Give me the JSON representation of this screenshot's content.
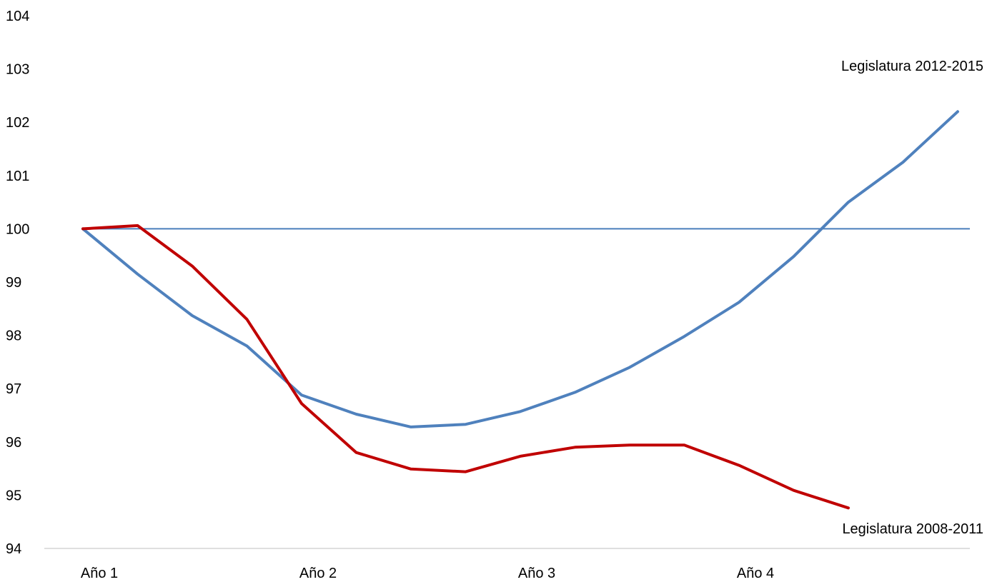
{
  "chart_data": {
    "type": "line",
    "title": "",
    "xlabel": "",
    "ylabel": "",
    "ylim": [
      94,
      104
    ],
    "yticks": [
      "104",
      "103",
      "102",
      "101",
      "100",
      "99",
      "98",
      "97",
      "96",
      "95",
      "94"
    ],
    "xticks": [
      "Año 1",
      "Año 2",
      "Año 3",
      "Año 4"
    ],
    "points_per_year": 4,
    "reference_line": 100,
    "grid": false,
    "colors": {
      "series_2012_2015": "#4f81bd",
      "series_2008_2011": "#c00000",
      "reference": "#4a7ebb",
      "axis": "#bfbfbf"
    },
    "series": [
      {
        "name": "Legislatura 2012-2015",
        "x": [
          0,
          1,
          2,
          3,
          4,
          5,
          6,
          7,
          8,
          9,
          10,
          11,
          12,
          13,
          14,
          15,
          16
        ],
        "values": [
          100.0,
          99.15,
          98.37,
          97.8,
          96.88,
          96.52,
          96.28,
          96.33,
          96.57,
          96.93,
          97.4,
          97.98,
          98.62,
          99.48,
          100.5,
          101.25,
          102.2
        ]
      },
      {
        "name": "Legislatura 2008-2011",
        "x": [
          0,
          1,
          2,
          3,
          4,
          5,
          6,
          7,
          8,
          9,
          10,
          11,
          12,
          13,
          14
        ],
        "values": [
          100.0,
          100.06,
          99.3,
          98.3,
          96.72,
          95.8,
          95.49,
          95.44,
          95.73,
          95.9,
          95.94,
          95.94,
          95.56,
          95.09,
          94.76
        ]
      }
    ]
  }
}
